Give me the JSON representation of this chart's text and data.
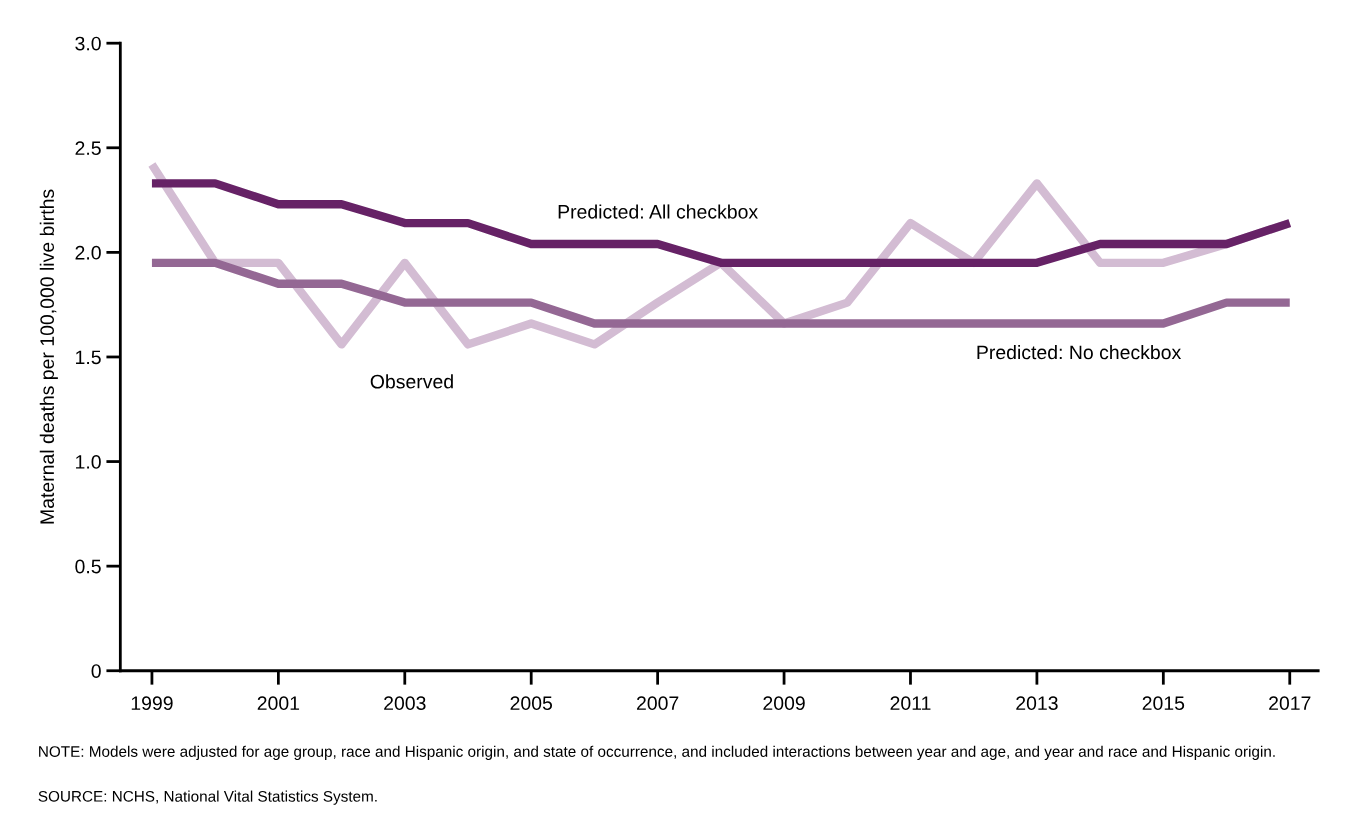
{
  "chart_data": {
    "type": "line",
    "ylabel": "Maternal deaths per 100,000 live births",
    "x": [
      1999,
      2000,
      2001,
      2002,
      2003,
      2004,
      2005,
      2006,
      2007,
      2008,
      2009,
      2010,
      2011,
      2012,
      2013,
      2014,
      2015,
      2016,
      2017
    ],
    "series": [
      {
        "name": "Predicted: All checkbox",
        "color": "#662266",
        "values": [
          2.33,
          2.33,
          2.23,
          2.23,
          2.14,
          2.14,
          2.04,
          2.04,
          2.04,
          1.95,
          1.95,
          1.95,
          1.95,
          1.95,
          1.95,
          2.04,
          2.04,
          2.04,
          2.14
        ]
      },
      {
        "name": "Predicted: No checkbox",
        "color": "#946894",
        "values": [
          1.95,
          1.95,
          1.85,
          1.85,
          1.76,
          1.76,
          1.76,
          1.66,
          1.66,
          1.66,
          1.66,
          1.66,
          1.66,
          1.66,
          1.66,
          1.66,
          1.66,
          1.76,
          1.76
        ]
      },
      {
        "name": "Observed",
        "color": "#d3bcd3",
        "values": [
          2.42,
          1.95,
          1.95,
          1.56,
          1.95,
          1.56,
          1.66,
          1.56,
          1.76,
          1.95,
          1.66,
          1.76,
          2.14,
          1.95,
          2.33,
          1.95,
          1.95,
          2.04,
          2.14
        ]
      }
    ],
    "xlim": [
      1998.5,
      2017.45
    ],
    "xticks": [
      1999,
      2001,
      2003,
      2005,
      2007,
      2009,
      2011,
      2013,
      2015,
      2017
    ],
    "ylim": [
      0,
      3.0
    ],
    "yticks": [
      0,
      0.5,
      {
        "value": 1,
        "label": "1.0"
      },
      1.5,
      {
        "value": 2,
        "label": "2.0"
      },
      2.5,
      {
        "value": 3,
        "label": "3.0"
      }
    ],
    "grid": false,
    "legend": false,
    "marker": "none",
    "line_style": "solid",
    "annotations": [
      "NOTE: Models were adjusted for age group, race and Hispanic origin, and state of occurrence, and included interactions between year and age, and year and race and Hispanic origin.",
      "SOURCE: NCHS, National Vital Statistics System."
    ]
  }
}
